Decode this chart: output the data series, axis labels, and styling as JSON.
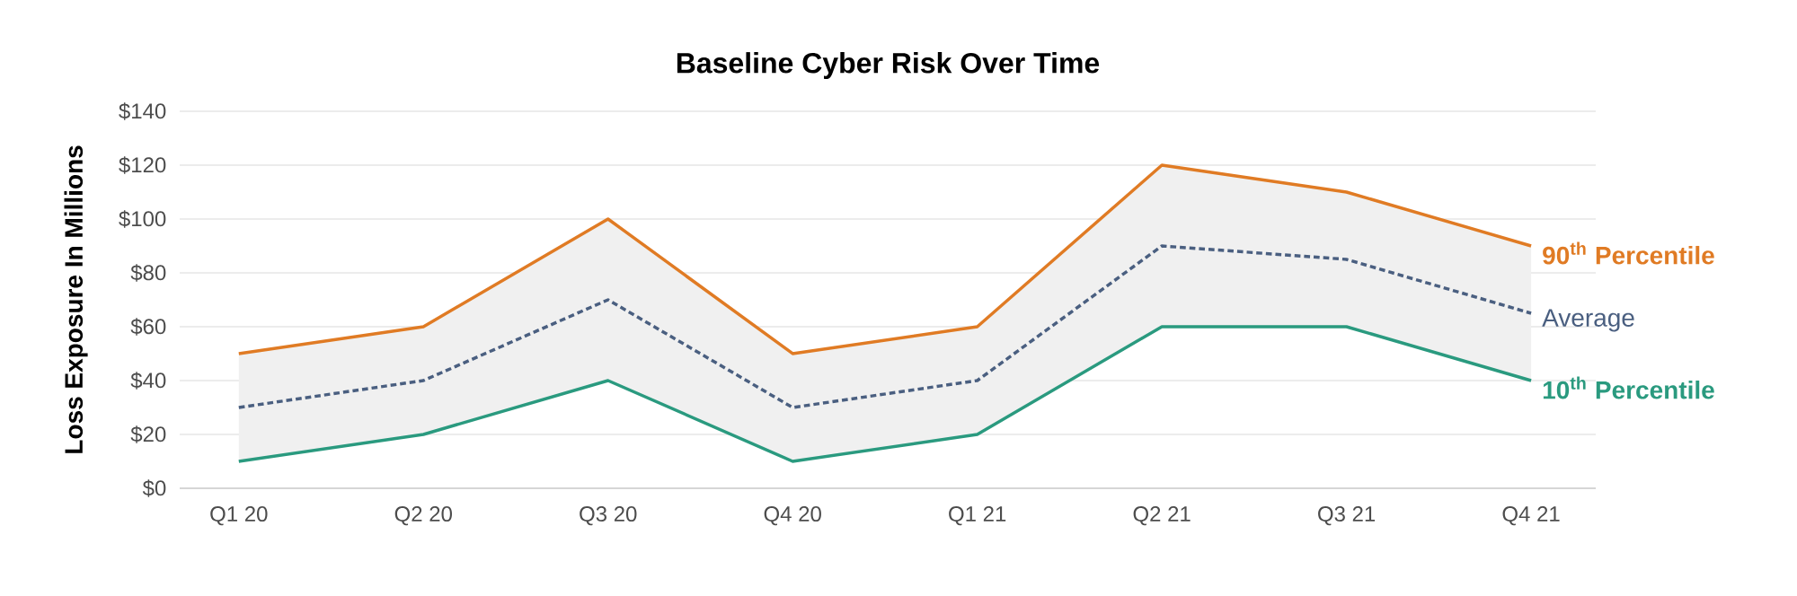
{
  "chart_data": {
    "type": "line",
    "title": "Baseline Cyber Risk Over Time",
    "ylabel": "Loss Exposure In Millions",
    "categories": [
      "Q1 20",
      "Q2 20",
      "Q3 20",
      "Q4 20",
      "Q1 21",
      "Q2 21",
      "Q3 21",
      "Q4 21"
    ],
    "series": [
      {
        "name": "90$^{th}$ Percentile",
        "color": "#e07b24",
        "line_style": "solid",
        "values": [
          50,
          60,
          100,
          50,
          60,
          120,
          110,
          90
        ]
      },
      {
        "name": "Average",
        "color": "#4a5f80",
        "line_style": "dashed",
        "values": [
          30,
          40,
          70,
          30,
          40,
          90,
          85,
          65
        ],
        "lower": [
          10,
          20,
          40,
          10,
          20,
          60,
          60,
          40
        ],
        "upper": [
          50,
          60,
          100,
          50,
          60,
          120,
          110,
          90
        ]
      },
      {
        "name": "10$^{th}$ Percentile",
        "color": "#2a9a7f",
        "line_style": "solid",
        "values": [
          10,
          20,
          40,
          10,
          20,
          60,
          60,
          40
        ]
      }
    ],
    "ylim": [
      0,
      140
    ],
    "yticks": [
      {
        "value": 0,
        "label": "$0"
      },
      {
        "value": 20,
        "label": "$20"
      },
      {
        "value": 40,
        "label": "$40"
      },
      {
        "value": 60,
        "label": "$60"
      },
      {
        "value": 80,
        "label": "$80"
      },
      {
        "value": 100,
        "label": "$100"
      },
      {
        "value": 120,
        "label": "$120"
      },
      {
        "value": 140,
        "label": "$140"
      }
    ],
    "grid": "y",
    "legend": false,
    "marker": "none"
  }
}
